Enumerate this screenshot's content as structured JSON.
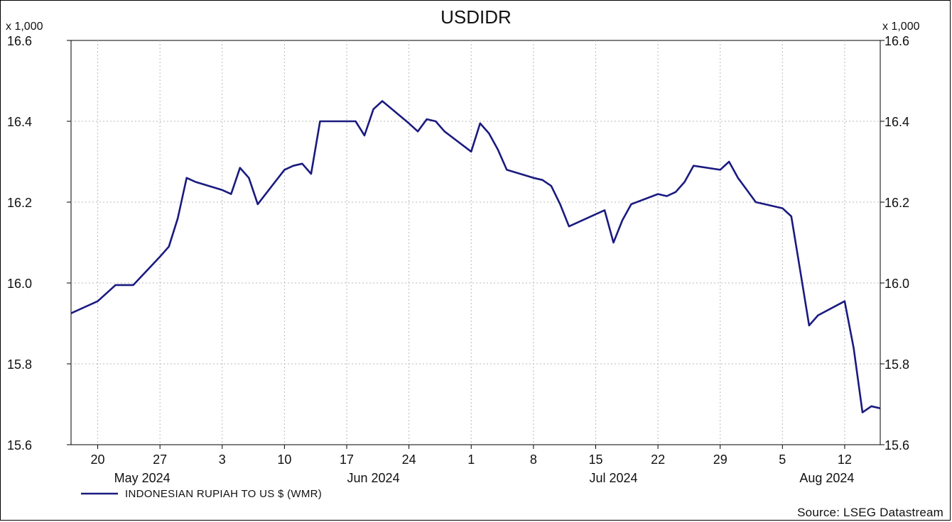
{
  "chart_data": {
    "type": "line",
    "title": "USDIDR",
    "y_multiplier_left": "x 1,000",
    "y_multiplier_right": "x 1,000",
    "ylim": [
      15.6,
      16.6
    ],
    "y_ticks": [
      "16.6",
      "16.4",
      "16.2",
      "16.0",
      "15.8",
      "15.6"
    ],
    "x_ticks": [
      {
        "label": "20",
        "date": "2024-05-20"
      },
      {
        "label": "27",
        "date": "2024-05-27"
      },
      {
        "label": "3",
        "date": "2024-06-03"
      },
      {
        "label": "10",
        "date": "2024-06-10"
      },
      {
        "label": "17",
        "date": "2024-06-17"
      },
      {
        "label": "24",
        "date": "2024-06-24"
      },
      {
        "label": "1",
        "date": "2024-07-01"
      },
      {
        "label": "8",
        "date": "2024-07-08"
      },
      {
        "label": "15",
        "date": "2024-07-15"
      },
      {
        "label": "22",
        "date": "2024-07-22"
      },
      {
        "label": "29",
        "date": "2024-07-29"
      },
      {
        "label": "5",
        "date": "2024-08-05"
      },
      {
        "label": "12",
        "date": "2024-08-12"
      }
    ],
    "months": [
      {
        "label": "May 2024",
        "date": "2024-05-25"
      },
      {
        "label": "Jun 2024",
        "date": "2024-06-20"
      },
      {
        "label": "Jul 2024",
        "date": "2024-07-17"
      },
      {
        "label": "Aug 2024",
        "date": "2024-08-10"
      }
    ],
    "x_range": [
      "2024-05-17",
      "2024-08-16"
    ],
    "grid": true,
    "legend_position": "bottom-left",
    "series": [
      {
        "name": "INDONESIAN RUPIAH TO US $ (WMR)",
        "color": "#1a1a80",
        "x": [
          "2024-05-17",
          "2024-05-20",
          "2024-05-21",
          "2024-05-22",
          "2024-05-23",
          "2024-05-24",
          "2024-05-27",
          "2024-05-28",
          "2024-05-29",
          "2024-05-30",
          "2024-05-31",
          "2024-06-03",
          "2024-06-04",
          "2024-06-05",
          "2024-06-06",
          "2024-06-07",
          "2024-06-10",
          "2024-06-11",
          "2024-06-12",
          "2024-06-13",
          "2024-06-14",
          "2024-06-17",
          "2024-06-18",
          "2024-06-19",
          "2024-06-20",
          "2024-06-21",
          "2024-06-24",
          "2024-06-25",
          "2024-06-26",
          "2024-06-27",
          "2024-06-28",
          "2024-07-01",
          "2024-07-02",
          "2024-07-03",
          "2024-07-04",
          "2024-07-05",
          "2024-07-08",
          "2024-07-09",
          "2024-07-10",
          "2024-07-11",
          "2024-07-12",
          "2024-07-15",
          "2024-07-16",
          "2024-07-17",
          "2024-07-18",
          "2024-07-19",
          "2024-07-22",
          "2024-07-23",
          "2024-07-24",
          "2024-07-25",
          "2024-07-26",
          "2024-07-29",
          "2024-07-30",
          "2024-07-31",
          "2024-08-01",
          "2024-08-02",
          "2024-08-05",
          "2024-08-06",
          "2024-08-07",
          "2024-08-08",
          "2024-08-09",
          "2024-08-12",
          "2024-08-13",
          "2024-08-14",
          "2024-08-15",
          "2024-08-16"
        ],
        "values": [
          15.925,
          15.955,
          15.975,
          15.995,
          15.995,
          15.995,
          16.065,
          16.09,
          16.16,
          16.26,
          16.25,
          16.23,
          16.22,
          16.285,
          16.26,
          16.195,
          16.28,
          16.29,
          16.295,
          16.27,
          16.4,
          16.4,
          16.4,
          16.365,
          16.43,
          16.45,
          16.395,
          16.375,
          16.405,
          16.4,
          16.375,
          16.325,
          16.395,
          16.37,
          16.33,
          16.28,
          16.26,
          16.255,
          16.24,
          16.195,
          16.14,
          16.17,
          16.18,
          16.1,
          16.155,
          16.195,
          16.22,
          16.215,
          16.225,
          16.25,
          16.29,
          16.28,
          16.3,
          16.26,
          16.23,
          16.2,
          16.185,
          16.165,
          16.03,
          15.895,
          15.92,
          15.955,
          15.84,
          15.68,
          15.695,
          15.69
        ]
      }
    ],
    "source": "Source: LSEG Datastream"
  }
}
